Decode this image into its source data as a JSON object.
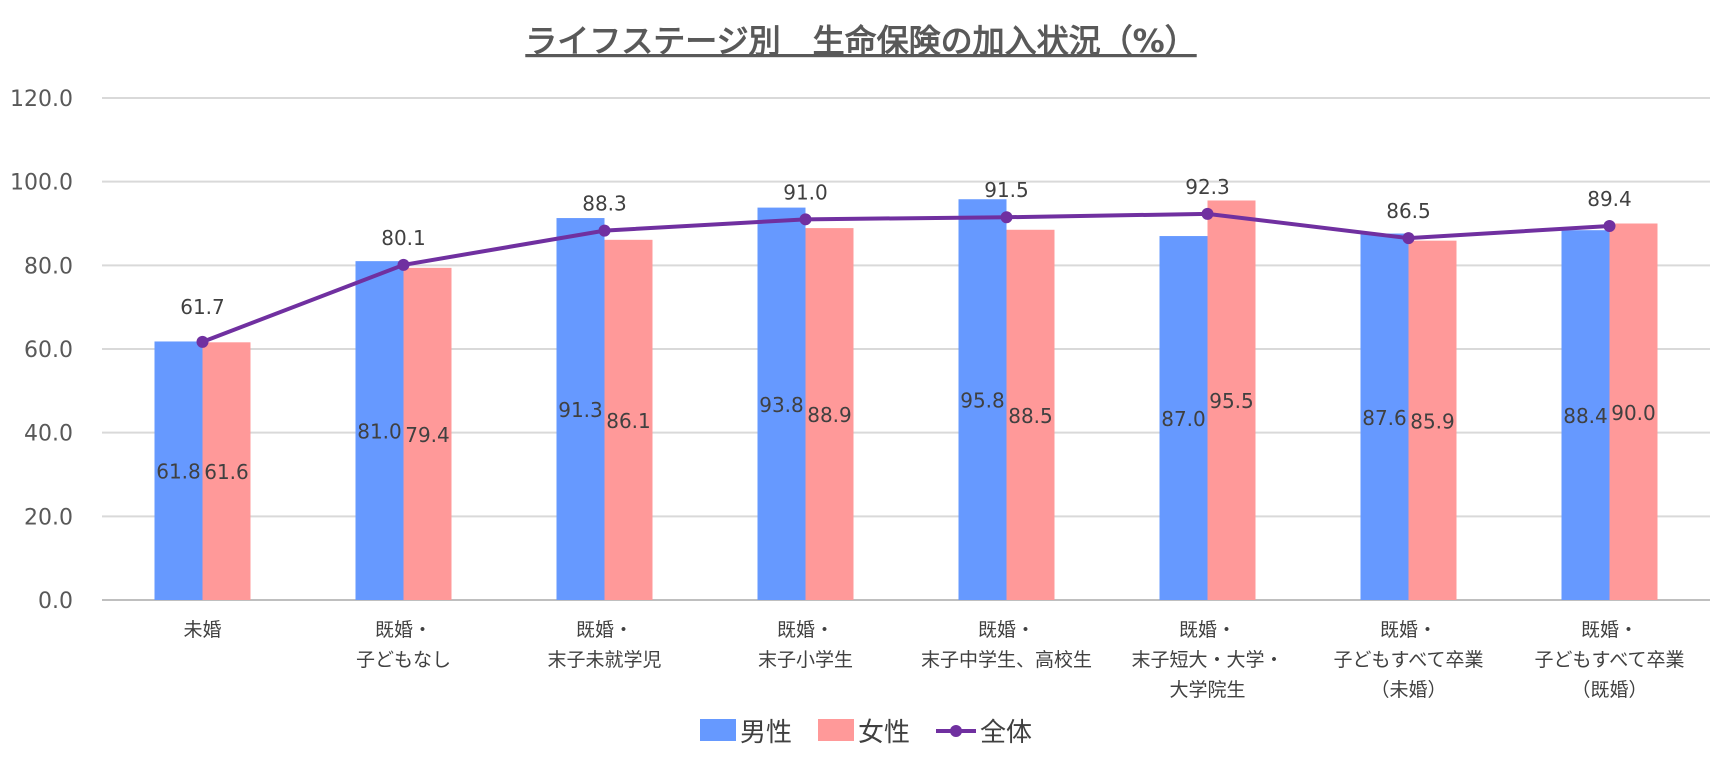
{
  "chart_data": {
    "type": "bar",
    "title": "ライフステージ別　生命保険の加入状況（%）",
    "categories": [
      [
        "未婚"
      ],
      [
        "既婚・",
        "子どもなし"
      ],
      [
        "既婚・",
        "末子未就学児"
      ],
      [
        "既婚・",
        "末子小学生"
      ],
      [
        "既婚・",
        "末子中学生、高校生"
      ],
      [
        "既婚・",
        "末子短大・大学・",
        "大学院生"
      ],
      [
        "既婚・",
        "子どもすべて卒業",
        "（未婚）"
      ],
      [
        "既婚・",
        "子どもすべて卒業",
        "（既婚）"
      ]
    ],
    "series": [
      {
        "name": "男性",
        "type": "bar",
        "color": "#6699FF",
        "values": [
          61.8,
          81.0,
          91.3,
          93.8,
          95.8,
          87.0,
          87.6,
          88.4
        ]
      },
      {
        "name": "女性",
        "type": "bar",
        "color": "#FF9999",
        "values": [
          61.6,
          79.4,
          86.1,
          88.9,
          88.5,
          95.5,
          85.9,
          90.0
        ]
      },
      {
        "name": "全体",
        "type": "line",
        "color": "#7030A0",
        "values": [
          61.7,
          80.1,
          88.3,
          91.0,
          91.5,
          92.3,
          86.5,
          89.4
        ]
      }
    ],
    "ylim": [
      0,
      120
    ],
    "yticks": [
      "0.0",
      "20.0",
      "40.0",
      "60.0",
      "80.0",
      "100.0",
      "120.0"
    ],
    "grid": true,
    "legend": "bottom"
  }
}
